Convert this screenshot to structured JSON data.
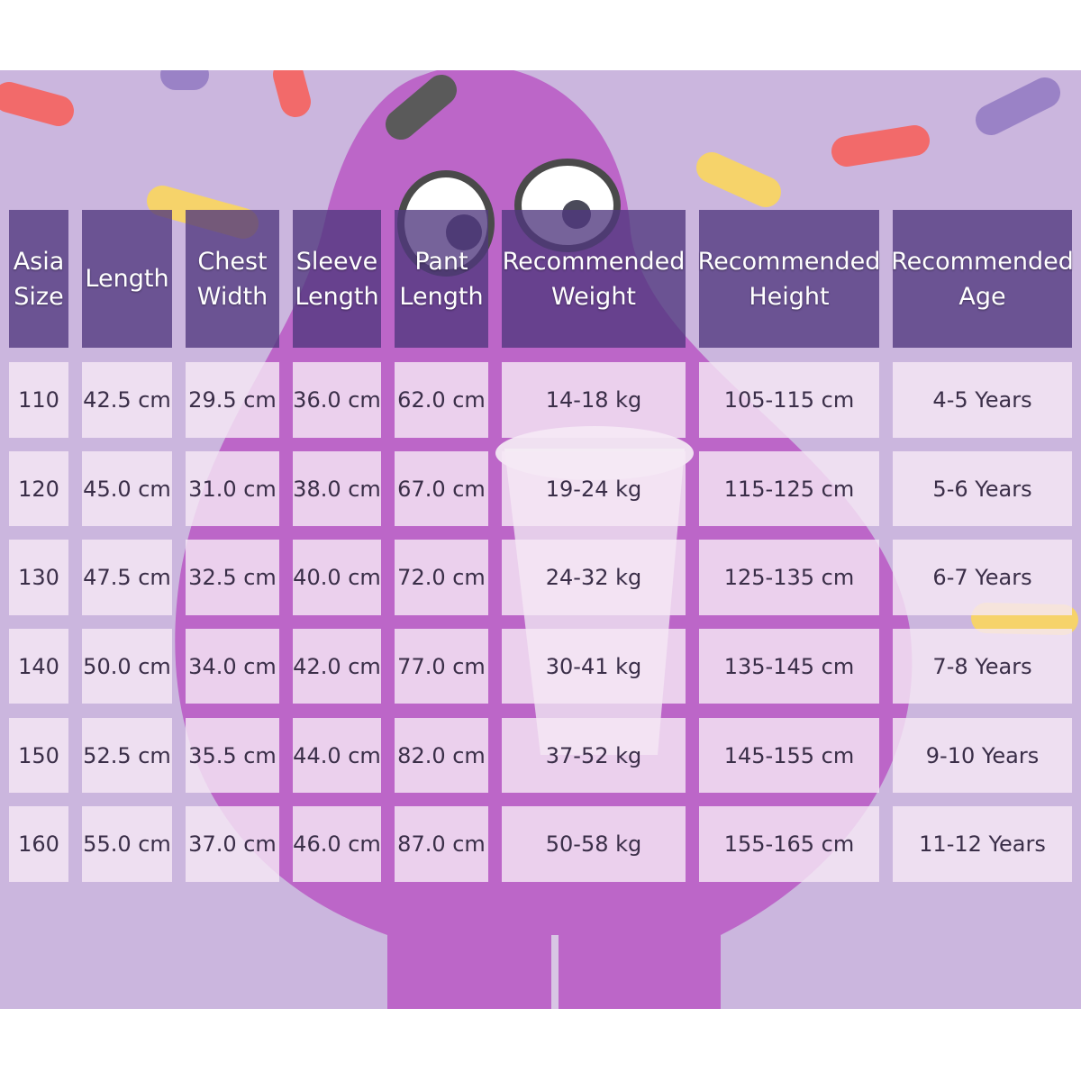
{
  "table": {
    "header": [
      [
        "Asia",
        "Size"
      ],
      [
        "Length"
      ],
      [
        "Chest",
        "Width"
      ],
      [
        "Sleeve",
        "Length"
      ],
      [
        "Pant",
        "Length"
      ],
      [
        "Recommended",
        "Weight"
      ],
      [
        "Recommended",
        "Height"
      ],
      [
        "Recommended",
        "Age"
      ]
    ],
    "rows": [
      [
        "110",
        "42.5 cm",
        "29.5 cm",
        "36.0 cm",
        "62.0 cm",
        "14-18 kg",
        "105-115 cm",
        "4-5 Years"
      ],
      [
        "120",
        "45.0 cm",
        "31.0 cm",
        "38.0 cm",
        "67.0 cm",
        "19-24 kg",
        "115-125 cm",
        "5-6 Years"
      ],
      [
        "130",
        "47.5 cm",
        "32.5 cm",
        "40.0 cm",
        "72.0 cm",
        "24-32 kg",
        "125-135 cm",
        "6-7 Years"
      ],
      [
        "140",
        "50.0 cm",
        "34.0 cm",
        "42.0 cm",
        "77.0 cm",
        "30-41 kg",
        "135-145 cm",
        "7-8 Years"
      ],
      [
        "150",
        "52.5 cm",
        "35.5 cm",
        "44.0 cm",
        "82.0 cm",
        "37-52 kg",
        "145-155 cm",
        "9-10 Years"
      ],
      [
        "160",
        "55.0 cm",
        "37.0 cm",
        "46.0 cm",
        "87.0 cm",
        "50-58 kg",
        "155-165 cm",
        "11-12 Years"
      ]
    ]
  }
}
